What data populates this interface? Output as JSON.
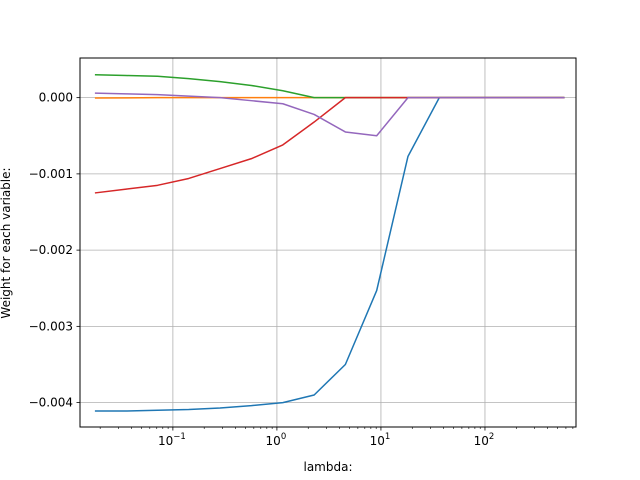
{
  "chart_data": {
    "type": "line",
    "title": "",
    "xlabel": "lambda:",
    "ylabel": "Weight for each variable:",
    "xscale": "log",
    "xlim": [
      0.0128,
      750
    ],
    "ylim": [
      -0.00432,
      0.00052
    ],
    "grid": true,
    "legend": "none",
    "x": [
      0.0178,
      0.0356,
      0.0711,
      0.142,
      0.284,
      0.569,
      1.14,
      2.28,
      4.55,
      9.1,
      18.2,
      36.4,
      72.8,
      146,
      291,
      582
    ],
    "y_ticks": [
      {
        "value": 0.0,
        "label": "0.000"
      },
      {
        "value": -0.001,
        "label": "−0.001"
      },
      {
        "value": -0.002,
        "label": "−0.002"
      },
      {
        "value": -0.003,
        "label": "−0.003"
      },
      {
        "value": -0.004,
        "label": "−0.004"
      }
    ],
    "x_ticks": [
      {
        "value": 0.1,
        "base": "10",
        "exp": "−1"
      },
      {
        "value": 1,
        "base": "10",
        "exp": "0"
      },
      {
        "value": 10,
        "base": "10",
        "exp": "1"
      },
      {
        "value": 100,
        "base": "10",
        "exp": "2"
      }
    ],
    "series": [
      {
        "color": "#1f77b4",
        "values": [
          -0.00411,
          -0.00411,
          -0.0041,
          -0.00409,
          -0.00407,
          -0.00404,
          -0.004,
          -0.0039,
          -0.0035,
          -0.00253,
          -0.00077,
          0,
          0,
          0,
          0,
          0
        ]
      },
      {
        "color": "#ff7f0e",
        "values": [
          -5e-06,
          -3e-06,
          0,
          0,
          0,
          0,
          0,
          0,
          0,
          0,
          0,
          0,
          0,
          0,
          0,
          0
        ]
      },
      {
        "color": "#2ca02c",
        "values": [
          0.0003,
          0.00029,
          0.00028,
          0.00025,
          0.00021,
          0.00016,
          9e-05,
          0.0,
          0.0,
          0,
          0,
          0,
          0,
          0,
          0,
          0
        ]
      },
      {
        "color": "#d62728",
        "values": [
          -0.00125,
          -0.0012,
          -0.00115,
          -0.00106,
          -0.00093,
          -0.0008,
          -0.00062,
          -0.00032,
          0,
          0,
          0,
          0,
          0,
          0,
          0,
          0
        ]
      },
      {
        "color": "#9467bd",
        "values": [
          6e-05,
          5e-05,
          4e-05,
          2e-05,
          0.0,
          -4e-05,
          -8e-05,
          -0.00022,
          -0.00045,
          -0.0005,
          0,
          0,
          0,
          0,
          0,
          0
        ]
      }
    ]
  }
}
